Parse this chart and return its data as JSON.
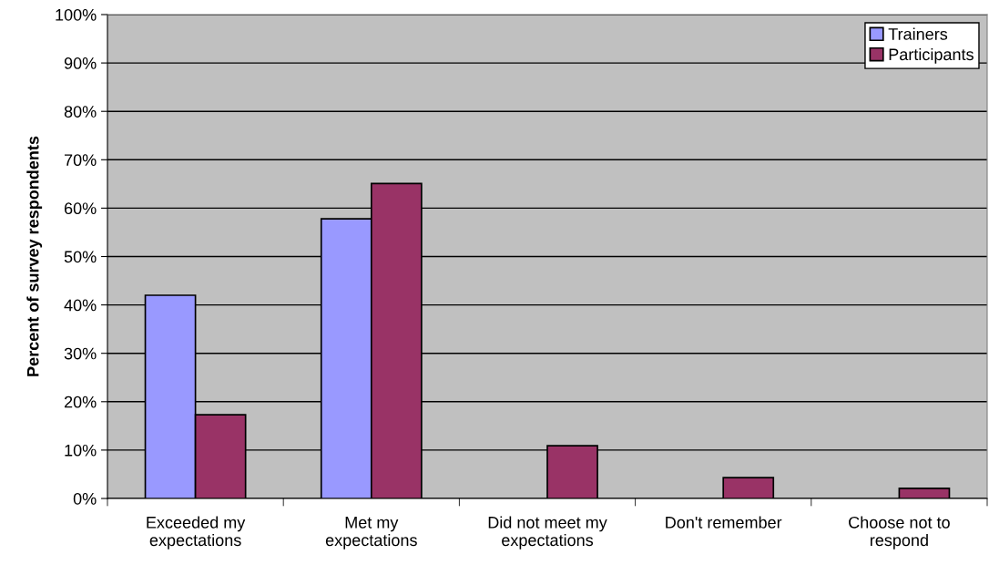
{
  "chart_data": {
    "type": "bar",
    "ylabel": "Percent of survey respondents",
    "categories": [
      "Exceeded my\nexpectations",
      "Met my\nexpectations",
      "Did not meet my\nexpectations",
      "Don't remember",
      "Choose not to\nrespond"
    ],
    "series": [
      {
        "name": "Trainers",
        "color": "#9999ff",
        "values": [
          42.0,
          57.8,
          null,
          null,
          null
        ]
      },
      {
        "name": "Participants",
        "color": "#993366",
        "values": [
          17.3,
          65.1,
          10.9,
          4.3,
          2.1
        ]
      }
    ],
    "ylim": [
      0,
      100
    ],
    "yticks": [
      {
        "value": 0,
        "label": "0%"
      },
      {
        "value": 10,
        "label": "10%"
      },
      {
        "value": 20,
        "label": "20%"
      },
      {
        "value": 30,
        "label": "30%"
      },
      {
        "value": 40,
        "label": "40%"
      },
      {
        "value": 50,
        "label": "50%"
      },
      {
        "value": 60,
        "label": "60%"
      },
      {
        "value": 70,
        "label": "70%"
      },
      {
        "value": 80,
        "label": "80%"
      },
      {
        "value": 90,
        "label": "90%"
      },
      {
        "value": 100,
        "label": "100%"
      }
    ],
    "grid": "y",
    "legend": "top right"
  }
}
